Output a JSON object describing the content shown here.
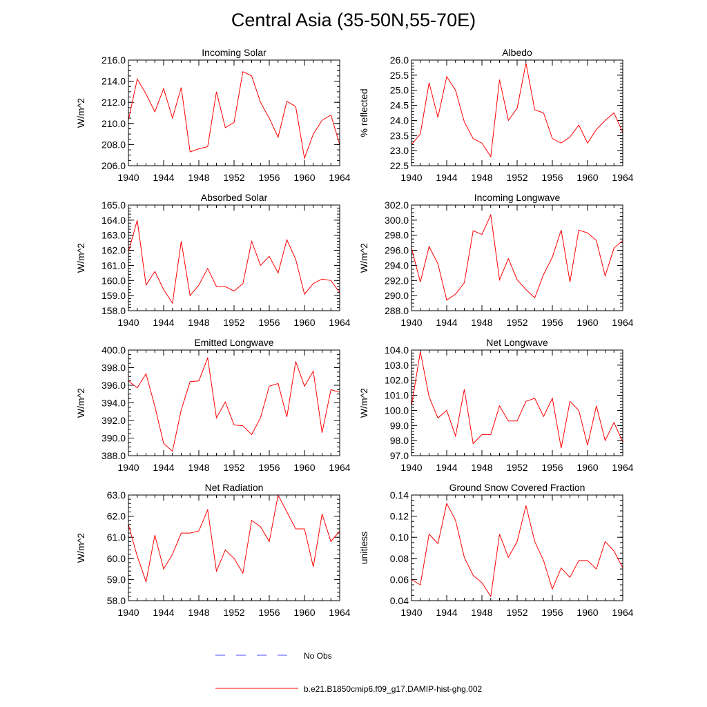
{
  "main_title": "Central Asia (35-50N,55-70E)",
  "colors": {
    "series": "#ff0000",
    "obs": "#4a4aff",
    "axis": "#000000"
  },
  "legend": {
    "obs_label": "No Obs",
    "model_label": "b.e21.B1850cmip6.f09_g17.DAMIP-hist-ghg.002"
  },
  "chart_data": [
    {
      "type": "line",
      "title": "Incoming Solar",
      "ylabel": "W/m^2",
      "ylim": [
        206,
        216
      ],
      "yticks": [
        "206.0",
        "208.0",
        "210.0",
        "212.0",
        "214.0",
        "216.0"
      ],
      "yminor": 0.5,
      "xlim": [
        1940,
        1964
      ],
      "xticks": [
        "1940",
        "1944",
        "1948",
        "1952",
        "1956",
        "1960",
        "1964"
      ],
      "x": [
        1940,
        1941,
        1942,
        1943,
        1944,
        1945,
        1946,
        1947,
        1948,
        1949,
        1950,
        1951,
        1952,
        1953,
        1954,
        1955,
        1956,
        1957,
        1958,
        1959,
        1960,
        1961,
        1962,
        1963,
        1964
      ],
      "y": [
        210.3,
        214.2,
        212.8,
        211.1,
        213.3,
        210.5,
        213.4,
        207.3,
        207.6,
        207.8,
        213.0,
        209.6,
        210.1,
        214.9,
        214.5,
        212.0,
        210.5,
        208.7,
        212.1,
        211.6,
        206.7,
        209.0,
        210.3,
        210.8,
        208.0
      ]
    },
    {
      "type": "line",
      "title": "Albedo",
      "ylabel": "% reflected",
      "ylim": [
        22.5,
        26
      ],
      "yticks": [
        "22.5",
        "23.0",
        "23.5",
        "24.0",
        "24.5",
        "25.0",
        "25.5",
        "26.0"
      ],
      "yminor": 0.1,
      "xlim": [
        1940,
        1964
      ],
      "xticks": [
        "1940",
        "1944",
        "1948",
        "1952",
        "1956",
        "1960",
        "1964"
      ],
      "x": [
        1940,
        1941,
        1942,
        1943,
        1944,
        1945,
        1946,
        1947,
        1948,
        1949,
        1950,
        1951,
        1952,
        1953,
        1954,
        1955,
        1956,
        1957,
        1958,
        1959,
        1960,
        1961,
        1962,
        1963,
        1964
      ],
      "y": [
        23.2,
        23.55,
        25.25,
        24.1,
        25.45,
        25.0,
        23.95,
        23.4,
        23.25,
        22.8,
        25.35,
        24.0,
        24.4,
        25.9,
        24.35,
        24.25,
        23.4,
        23.25,
        23.45,
        23.85,
        23.25,
        23.7,
        24.0,
        24.25,
        23.6
      ]
    },
    {
      "type": "line",
      "title": "Absorbed Solar",
      "ylabel": "W/m^2",
      "ylim": [
        158,
        165
      ],
      "yticks": [
        "158.0",
        "159.0",
        "160.0",
        "161.0",
        "162.0",
        "163.0",
        "164.0",
        "165.0"
      ],
      "yminor": 0.2,
      "xlim": [
        1940,
        1964
      ],
      "xticks": [
        "1940",
        "1944",
        "1948",
        "1952",
        "1956",
        "1960",
        "1964"
      ],
      "x": [
        1940,
        1941,
        1942,
        1943,
        1944,
        1945,
        1946,
        1947,
        1948,
        1949,
        1950,
        1951,
        1952,
        1953,
        1954,
        1955,
        1956,
        1957,
        1958,
        1959,
        1960,
        1961,
        1962,
        1963,
        1964
      ],
      "y": [
        161.9,
        164.0,
        159.7,
        160.6,
        159.4,
        158.5,
        162.6,
        159.0,
        159.7,
        160.8,
        159.6,
        159.6,
        159.3,
        159.8,
        162.6,
        161.0,
        161.6,
        160.5,
        162.7,
        161.4,
        159.1,
        159.8,
        160.1,
        160.0,
        159.2
      ]
    },
    {
      "type": "line",
      "title": "Incoming Longwave",
      "ylabel": "W/m^2",
      "ylim": [
        288,
        302
      ],
      "yticks": [
        "288.0",
        "290.0",
        "292.0",
        "294.0",
        "296.0",
        "298.0",
        "300.0",
        "302.0"
      ],
      "yminor": 0.5,
      "xlim": [
        1940,
        1964
      ],
      "xticks": [
        "1940",
        "1944",
        "1948",
        "1952",
        "1956",
        "1960",
        "1964"
      ],
      "x": [
        1940,
        1941,
        1942,
        1943,
        1944,
        1945,
        1946,
        1947,
        1948,
        1949,
        1950,
        1951,
        1952,
        1953,
        1954,
        1955,
        1956,
        1957,
        1958,
        1959,
        1960,
        1961,
        1962,
        1963,
        1964
      ],
      "y": [
        296.3,
        291.8,
        296.5,
        294.2,
        289.4,
        290.2,
        291.7,
        298.6,
        298.1,
        300.7,
        292.1,
        294.9,
        292.1,
        290.8,
        289.7,
        292.8,
        295.1,
        298.7,
        291.8,
        298.7,
        298.3,
        297.3,
        292.6,
        296.3,
        297.3
      ]
    },
    {
      "type": "line",
      "title": "Emitted Longwave",
      "ylabel": "W/m^2",
      "ylim": [
        388,
        400
      ],
      "yticks": [
        "388.0",
        "390.0",
        "392.0",
        "394.0",
        "396.0",
        "398.0",
        "400.0"
      ],
      "yminor": 0.5,
      "xlim": [
        1940,
        1964
      ],
      "xticks": [
        "1940",
        "1944",
        "1948",
        "1952",
        "1956",
        "1960",
        "1964"
      ],
      "x": [
        1940,
        1941,
        1942,
        1943,
        1944,
        1945,
        1946,
        1947,
        1948,
        1949,
        1950,
        1951,
        1952,
        1953,
        1954,
        1955,
        1956,
        1957,
        1958,
        1959,
        1960,
        1961,
        1962,
        1963,
        1964
      ],
      "y": [
        396.5,
        395.7,
        397.3,
        393.6,
        389.4,
        388.5,
        393.2,
        396.4,
        396.5,
        399.1,
        392.3,
        394.1,
        391.5,
        391.4,
        390.4,
        392.3,
        395.9,
        396.2,
        392.4,
        398.7,
        395.9,
        397.6,
        390.6,
        395.5,
        395.2
      ]
    },
    {
      "type": "line",
      "title": "Net Longwave",
      "ylabel": "W/m^2",
      "ylim": [
        97,
        104
      ],
      "yticks": [
        "97.0",
        "98.0",
        "99.0",
        "100.0",
        "101.0",
        "102.0",
        "103.0",
        "104.0"
      ],
      "yminor": 0.2,
      "xlim": [
        1940,
        1964
      ],
      "xticks": [
        "1940",
        "1944",
        "1948",
        "1952",
        "1956",
        "1960",
        "1964"
      ],
      "x": [
        1940,
        1941,
        1942,
        1943,
        1944,
        1945,
        1946,
        1947,
        1948,
        1949,
        1950,
        1951,
        1952,
        1953,
        1954,
        1955,
        1956,
        1957,
        1958,
        1959,
        1960,
        1961,
        1962,
        1963,
        1964
      ],
      "y": [
        100.3,
        103.9,
        100.9,
        99.5,
        100.0,
        98.3,
        101.4,
        97.8,
        98.4,
        98.4,
        100.3,
        99.3,
        99.3,
        100.6,
        100.8,
        99.6,
        100.8,
        97.5,
        100.6,
        100.0,
        97.7,
        100.3,
        98.0,
        99.2,
        97.9
      ]
    },
    {
      "type": "line",
      "title": "Net Radiation",
      "ylabel": "W/m^2",
      "ylim": [
        58,
        63
      ],
      "yticks": [
        "58.0",
        "59.0",
        "60.0",
        "61.0",
        "62.0",
        "63.0"
      ],
      "yminor": 0.2,
      "xlim": [
        1940,
        1964
      ],
      "xticks": [
        "1940",
        "1944",
        "1948",
        "1952",
        "1956",
        "1960",
        "1964"
      ],
      "x": [
        1940,
        1941,
        1942,
        1943,
        1944,
        1945,
        1946,
        1947,
        1948,
        1949,
        1950,
        1951,
        1952,
        1953,
        1954,
        1955,
        1956,
        1957,
        1958,
        1959,
        1960,
        1961,
        1962,
        1963,
        1964
      ],
      "y": [
        61.6,
        60.1,
        58.9,
        61.1,
        59.5,
        60.2,
        61.2,
        61.2,
        61.3,
        62.3,
        59.4,
        60.4,
        60.0,
        59.3,
        61.8,
        61.5,
        60.8,
        63.0,
        62.2,
        61.4,
        61.4,
        59.6,
        62.1,
        60.8,
        61.3
      ]
    },
    {
      "type": "line",
      "title": "Ground Snow Covered Fraction",
      "ylabel": "unitless",
      "ylim": [
        0.04,
        0.14
      ],
      "yticks": [
        "0.04",
        "0.06",
        "0.08",
        "0.10",
        "0.12",
        "0.14"
      ],
      "yminor": 0.005,
      "xlim": [
        1940,
        1964
      ],
      "xticks": [
        "1940",
        "1944",
        "1948",
        "1952",
        "1956",
        "1960",
        "1964"
      ],
      "x": [
        1940,
        1941,
        1942,
        1943,
        1944,
        1945,
        1946,
        1947,
        1948,
        1949,
        1950,
        1951,
        1952,
        1953,
        1954,
        1955,
        1956,
        1957,
        1958,
        1959,
        1960,
        1961,
        1962,
        1963,
        1964
      ],
      "y": [
        0.06,
        0.055,
        0.103,
        0.094,
        0.132,
        0.116,
        0.081,
        0.064,
        0.057,
        0.044,
        0.103,
        0.081,
        0.096,
        0.13,
        0.096,
        0.078,
        0.051,
        0.071,
        0.062,
        0.078,
        0.078,
        0.07,
        0.096,
        0.087,
        0.071
      ]
    }
  ]
}
